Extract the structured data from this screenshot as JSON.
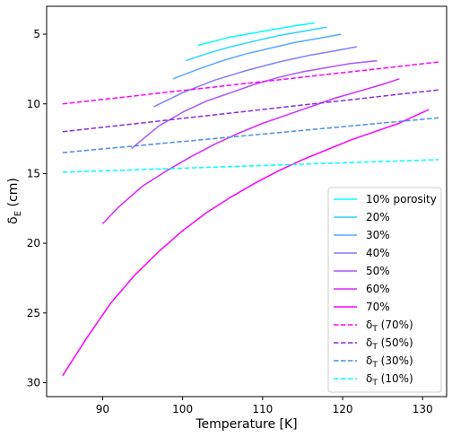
{
  "chart_data": {
    "type": "line",
    "xlabel": "Temperature [K]",
    "ylabel_main": "δ",
    "ylabel_sub": "E",
    "ylabel_unit": " (cm)",
    "xlim": [
      83,
      133
    ],
    "ylim": [
      31,
      3
    ],
    "y_inverted": true,
    "grid": false,
    "legend_position": "lower-right",
    "xticks": [
      90,
      100,
      110,
      120,
      130
    ],
    "yticks": [
      5,
      10,
      15,
      20,
      25,
      30
    ],
    "series": [
      {
        "name": "10% porosity",
        "label_parts": [
          "10% porosity",
          "",
          ""
        ],
        "color": "#00ffff",
        "style": "solid",
        "x": [
          101.9,
          104,
          106,
          108,
          110,
          112,
          114,
          116.5
        ],
        "y": [
          5.8,
          5.5,
          5.2,
          5.0,
          4.8,
          4.6,
          4.4,
          4.2
        ]
      },
      {
        "name": "20%",
        "label_parts": [
          "20%",
          "",
          ""
        ],
        "color": "#2ad5ff",
        "style": "solid",
        "x": [
          100.4,
          103,
          106,
          109,
          112,
          115,
          118
        ],
        "y": [
          6.9,
          6.4,
          5.9,
          5.5,
          5.1,
          4.8,
          4.5
        ]
      },
      {
        "name": "30%",
        "label_parts": [
          "30%",
          "",
          ""
        ],
        "color": "#55aaff",
        "style": "solid",
        "x": [
          98.8,
          102,
          105,
          108,
          111,
          114,
          117,
          119.8
        ],
        "y": [
          8.2,
          7.5,
          6.9,
          6.4,
          6.0,
          5.6,
          5.3,
          5.0
        ]
      },
      {
        "name": "40%",
        "label_parts": [
          "40%",
          "",
          ""
        ],
        "color": "#7f7fff",
        "style": "solid",
        "x": [
          96.4,
          100,
          104,
          108,
          112,
          116,
          119,
          121.8
        ],
        "y": [
          10.2,
          9.2,
          8.3,
          7.6,
          7.0,
          6.5,
          6.2,
          5.9
        ]
      },
      {
        "name": "50%",
        "label_parts": [
          "50%",
          "",
          ""
        ],
        "color": "#aa55ff",
        "style": "solid",
        "x": [
          93.6,
          97,
          100,
          103,
          106,
          109,
          112,
          115,
          118,
          121,
          124.3
        ],
        "y": [
          13.2,
          11.6,
          10.6,
          9.8,
          9.2,
          8.6,
          8.1,
          7.7,
          7.4,
          7.1,
          6.9
        ]
      },
      {
        "name": "60%",
        "label_parts": [
          "60%",
          "",
          ""
        ],
        "color": "#d42aff",
        "style": "solid",
        "x": [
          90,
          92,
          95,
          98,
          101,
          104,
          107,
          110,
          113,
          116,
          119,
          122,
          125,
          127.1
        ],
        "y": [
          18.6,
          17.4,
          15.9,
          14.8,
          13.8,
          12.9,
          12.1,
          11.4,
          10.8,
          10.2,
          9.6,
          9.1,
          8.6,
          8.2
        ]
      },
      {
        "name": "70%",
        "label_parts": [
          "70%",
          "",
          ""
        ],
        "color": "#ff00ff",
        "style": "solid",
        "x": [
          85,
          88,
          91,
          94,
          97,
          100,
          103,
          106,
          109,
          112,
          115,
          118,
          121,
          124,
          127,
          130.8
        ],
        "y": [
          29.5,
          26.8,
          24.3,
          22.3,
          20.6,
          19.1,
          17.8,
          16.7,
          15.7,
          14.8,
          14.0,
          13.3,
          12.6,
          12.0,
          11.4,
          10.4
        ]
      },
      {
        "name": "δT (70%)",
        "label_parts": [
          "δ",
          "T",
          " (70%)"
        ],
        "color": "#ff00ff",
        "style": "dashed",
        "x": [
          85,
          132
        ],
        "y": [
          10.0,
          7.0
        ]
      },
      {
        "name": "δT (50%)",
        "label_parts": [
          "δ",
          "T",
          " (50%)"
        ],
        "color": "#8a2be2",
        "style": "dashed",
        "x": [
          85,
          132
        ],
        "y": [
          12.0,
          9.0
        ]
      },
      {
        "name": "δT (30%)",
        "label_parts": [
          "δ",
          "T",
          " (30%)"
        ],
        "color": "#4a8ee6",
        "style": "dashed",
        "x": [
          85,
          132
        ],
        "y": [
          13.5,
          11.0
        ]
      },
      {
        "name": "δT (10%)",
        "label_parts": [
          "δ",
          "T",
          " (10%)"
        ],
        "color": "#00ffff",
        "style": "dashed",
        "x": [
          85,
          132
        ],
        "y": [
          14.9,
          14.0
        ]
      }
    ]
  }
}
